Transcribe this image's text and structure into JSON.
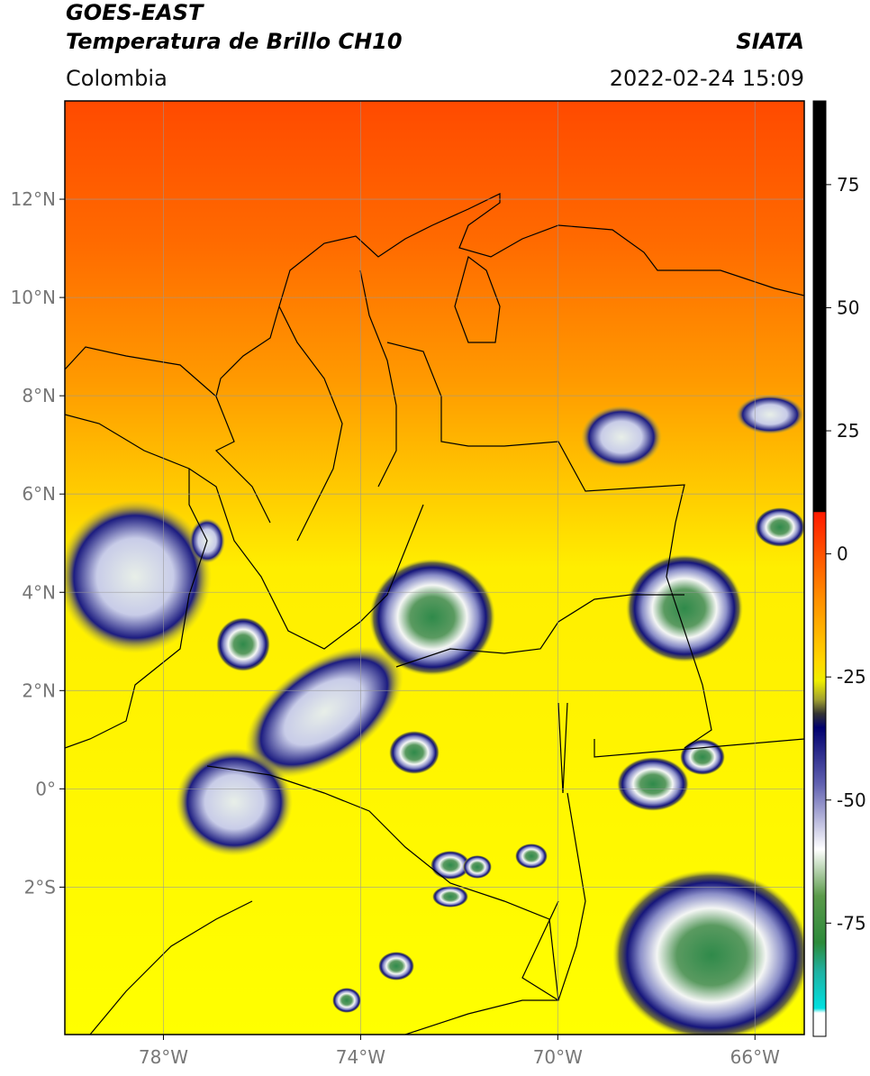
{
  "header": {
    "title": "GOES-EAST",
    "subtitle": "Temperatura de Brillo CH10",
    "source": "SIATA",
    "region": "Colombia",
    "datetime": "2022-02-24 15:09"
  },
  "map": {
    "lonlim": [
      -80,
      -65
    ],
    "latlim": [
      -5,
      14
    ],
    "lonticks": [
      {
        "value": -78,
        "label": "78°W"
      },
      {
        "value": -74,
        "label": "74°W"
      },
      {
        "value": -70,
        "label": "70°W"
      },
      {
        "value": -66,
        "label": "66°W"
      }
    ],
    "latticks": [
      {
        "value": 12,
        "label": "12°N"
      },
      {
        "value": 10,
        "label": "10°N"
      },
      {
        "value": 8,
        "label": "8°N"
      },
      {
        "value": 6,
        "label": "6°N"
      },
      {
        "value": 4,
        "label": "4°N"
      },
      {
        "value": 2,
        "label": "2°N"
      },
      {
        "value": 0,
        "label": "0°"
      },
      {
        "value": -2,
        "label": "2°S"
      }
    ],
    "grid": true
  },
  "colorbar": {
    "lim": [
      -98,
      92
    ],
    "ticks": [
      75,
      50,
      25,
      0,
      -25,
      -50,
      -75
    ]
  }
}
